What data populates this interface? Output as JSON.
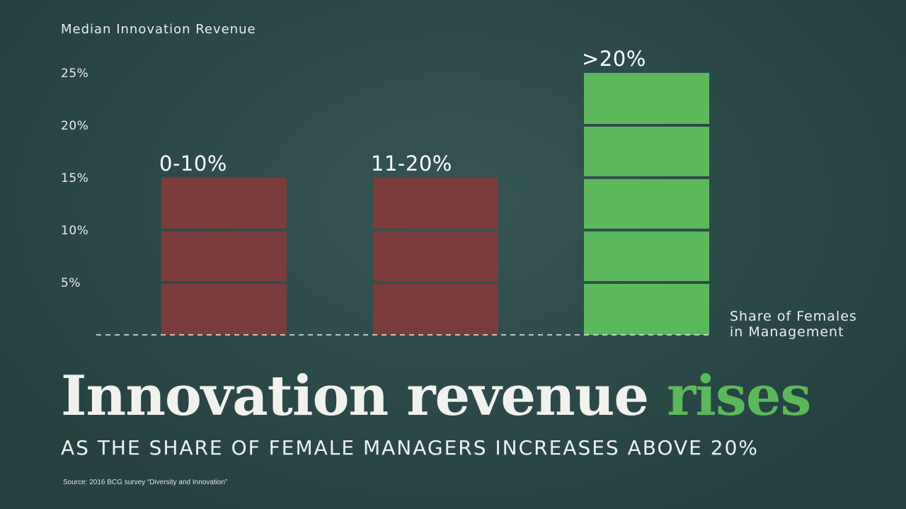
{
  "chart_data": {
    "type": "bar",
    "title": "",
    "ylabel": "Median Innovation Revenue",
    "xlabel_lines": [
      "Share of Females",
      "in Management"
    ],
    "categories": [
      "0-10%",
      "11-20%",
      ">20%"
    ],
    "values": [
      15,
      15,
      25
    ],
    "bar_colors": [
      "#7a3b3b",
      "#7a3b3b",
      "#5cb85c"
    ],
    "segment_step": 5,
    "ylim": [
      0,
      25
    ],
    "yticks": [
      5,
      10,
      15,
      20,
      25
    ],
    "ytick_labels": [
      "5%",
      "10%",
      "15%",
      "20%",
      "25%"
    ],
    "baseline": "dashed"
  },
  "headline": {
    "main": "Innovation revenue",
    "accent": "rises",
    "accent_color": "#5cb85c"
  },
  "subhead": "AS THE SHARE OF FEMALE MANAGERS INCREASES ABOVE 20%",
  "source": "Source: 2016 BCG survey “Diversity and Innovation”"
}
